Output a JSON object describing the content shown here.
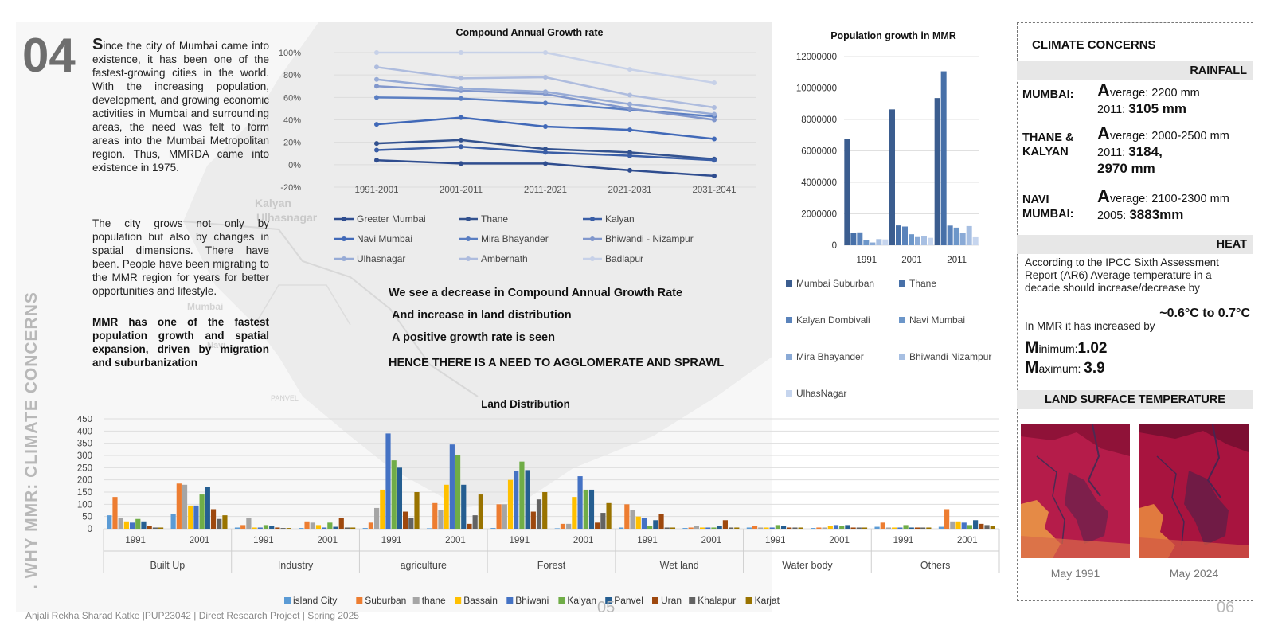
{
  "section_number": "04",
  "vertical_title": ". WHY MMR: CLIMATE CONCERNS",
  "map_labels": [
    "Kalyan",
    "Ulhasnagar",
    "Mumbai",
    "Navi",
    "PANVEL"
  ],
  "intro": {
    "dropcap": "S",
    "paragraph1": "ince the city of Mumbai came into existence, it has been one of the fastest-growing cities in the world. With the increasing population, development, and growing economic activities in Mumbai and surrounding areas, the need was felt to form areas into the Mumbai Metropolitan region. Thus, MMRDA came into existence in 1975.",
    "paragraph2": "The city grows not only by population but also by changes in spatial dimensions. There have been. People have been migrating to the MMR region for years for better opportunities and lifestyle.",
    "highlight": "MMR has one of the fastest population growth and spatial expansion, driven by migration and suburbanization"
  },
  "statements": [
    "We see a decrease in Compound Annual Growth Rate",
    "And increase in land distribution",
    "A positive growth rate is seen",
    "HENCE THERE IS A NEED TO AGGLOMERATE AND SPRAWL"
  ],
  "footer": {
    "credit": "Anjali Rekha Sharad Katke |PUP23042 | Direct Research Project | Spring 2025",
    "page_left": "05",
    "page_right": "06"
  },
  "chart_data": [
    {
      "id": "cagr",
      "type": "line",
      "title": "Compound Annual Growth rate",
      "categories": [
        "1991-2001",
        "2001-2011",
        "2011-2021",
        "2021-2031",
        "2031-2041"
      ],
      "yticks": [
        "100%",
        "80%",
        "60%",
        "40%",
        "20%",
        "0%",
        "-20%"
      ],
      "ylim": [
        -20,
        100
      ],
      "legend_position": "bottom",
      "series": [
        {
          "name": "Greater Mumbai",
          "color": "#2f4d8f",
          "values": [
            4,
            1,
            1,
            -5,
            -10
          ]
        },
        {
          "name": "Thane",
          "color": "#33528f",
          "values": [
            19,
            22,
            14,
            11,
            5
          ]
        },
        {
          "name": "Kalyan",
          "color": "#3a5ea6",
          "values": [
            13,
            16,
            11,
            8,
            4
          ]
        },
        {
          "name": "Navi Mumbai",
          "color": "#4169b8",
          "values": [
            36,
            42,
            34,
            31,
            23
          ]
        },
        {
          "name": "Mira Bhayander",
          "color": "#5a7ec2",
          "values": [
            60,
            59,
            55,
            49,
            43
          ]
        },
        {
          "name": "Bhiwandi - Nizampur",
          "color": "#8197cc",
          "values": [
            70,
            66,
            63,
            50,
            40
          ]
        },
        {
          "name": "Ulhasnagar",
          "color": "#97abd6",
          "values": [
            76,
            68,
            65,
            54,
            45
          ]
        },
        {
          "name": "Ambernath",
          "color": "#aebcde",
          "values": [
            87,
            77,
            78,
            62,
            51
          ]
        },
        {
          "name": "Badlapur",
          "color": "#c7d1e8",
          "values": [
            100,
            100,
            100,
            85,
            73
          ]
        }
      ]
    },
    {
      "id": "population",
      "type": "bar",
      "title": "Population  growth in MMR",
      "categories": [
        "1991",
        "2001",
        "2011"
      ],
      "yticks": [
        "12000000",
        "10000000",
        "8000000",
        "6000000",
        "4000000",
        "2000000",
        "0"
      ],
      "ylim": [
        0,
        12000000
      ],
      "legend_position": "bottom",
      "series": [
        {
          "name": "Mumbai Suburban",
          "color": "#3b5d8f",
          "values": [
            6750000,
            8640000,
            9360000
          ]
        },
        {
          "name": "Thane",
          "color": "#4770a8",
          "values": [
            800000,
            1260000,
            11060000
          ]
        },
        {
          "name": "Kalyan Dombivali",
          "color": "#5a83bb",
          "values": [
            820000,
            1190000,
            1250000
          ]
        },
        {
          "name": "Navi Mumbai",
          "color": "#6c96c9",
          "values": [
            310000,
            700000,
            1120000
          ]
        },
        {
          "name": "Mira Bhayander",
          "color": "#8aaad6",
          "values": [
            175000,
            520000,
            810000
          ]
        },
        {
          "name": "Bhiwandi Nizampur",
          "color": "#a7bfe2",
          "values": [
            390000,
            600000,
            1220000
          ]
        },
        {
          "name": "UlhasNagar",
          "color": "#c6d5ee",
          "values": [
            370000,
            470000,
            510000
          ]
        }
      ]
    },
    {
      "id": "land",
      "type": "bar",
      "title": "Land Distribution",
      "groups": [
        "Built Up",
        "Industry",
        "agriculture",
        "Forest",
        "Wet land",
        "Water body",
        "Others"
      ],
      "years": [
        "1991",
        "2001"
      ],
      "yticks": [
        "450",
        "400",
        "350",
        "300",
        "250",
        "200",
        "150",
        "100",
        "50",
        "0"
      ],
      "ylim": [
        0,
        450
      ],
      "legend_position": "bottom",
      "series": [
        {
          "name": "island City",
          "color": "#5b9bd5",
          "values": [
            [
              55,
              60
            ],
            [
              5,
              3
            ],
            [
              3,
              2
            ],
            [
              3,
              2
            ],
            [
              5,
              3
            ],
            [
              5,
              3
            ],
            [
              8,
              8
            ]
          ]
        },
        {
          "name": "Suburban",
          "color": "#ed7d31",
          "values": [
            [
              130,
              185
            ],
            [
              15,
              30
            ],
            [
              25,
              105
            ],
            [
              100,
              20
            ],
            [
              100,
              5
            ],
            [
              10,
              5
            ],
            [
              25,
              80
            ]
          ]
        },
        {
          "name": "thane",
          "color": "#a5a5a5",
          "values": [
            [
              45,
              180
            ],
            [
              45,
              25
            ],
            [
              85,
              75
            ],
            [
              100,
              20
            ],
            [
              75,
              12
            ],
            [
              5,
              5
            ],
            [
              5,
              30
            ]
          ]
        },
        {
          "name": "Bassain",
          "color": "#ffc000",
          "values": [
            [
              30,
              95
            ],
            [
              5,
              15
            ],
            [
              160,
              180
            ],
            [
              200,
              130
            ],
            [
              50,
              5
            ],
            [
              5,
              10
            ],
            [
              5,
              30
            ]
          ]
        },
        {
          "name": "Bhiwani",
          "color": "#4472c4",
          "values": [
            [
              25,
              95
            ],
            [
              5,
              5
            ],
            [
              390,
              345
            ],
            [
              235,
              215
            ],
            [
              45,
              5
            ],
            [
              5,
              15
            ],
            [
              5,
              25
            ]
          ]
        },
        {
          "name": "Kalyan",
          "color": "#70ad47",
          "values": [
            [
              40,
              140
            ],
            [
              15,
              25
            ],
            [
              280,
              300
            ],
            [
              275,
              160
            ],
            [
              10,
              5
            ],
            [
              15,
              10
            ],
            [
              15,
              15
            ]
          ]
        },
        {
          "name": "Panvel",
          "color": "#255e91",
          "values": [
            [
              30,
              170
            ],
            [
              10,
              8
            ],
            [
              250,
              180
            ],
            [
              240,
              160
            ],
            [
              35,
              10
            ],
            [
              10,
              15
            ],
            [
              5,
              35
            ]
          ]
        },
        {
          "name": "Uran",
          "color": "#9e480e",
          "values": [
            [
              10,
              80
            ],
            [
              5,
              45
            ],
            [
              70,
              20
            ],
            [
              70,
              25
            ],
            [
              60,
              35
            ],
            [
              5,
              5
            ],
            [
              5,
              20
            ]
          ]
        },
        {
          "name": "Khalapur",
          "color": "#636363",
          "values": [
            [
              5,
              40
            ],
            [
              3,
              5
            ],
            [
              45,
              55
            ],
            [
              120,
              65
            ],
            [
              5,
              5
            ],
            [
              5,
              5
            ],
            [
              5,
              15
            ]
          ]
        },
        {
          "name": "Karjat",
          "color": "#997300",
          "values": [
            [
              5,
              55
            ],
            [
              3,
              5
            ],
            [
              150,
              140
            ],
            [
              150,
              105
            ],
            [
              5,
              5
            ],
            [
              5,
              5
            ],
            [
              5,
              10
            ]
          ]
        }
      ]
    }
  ],
  "climate": {
    "title": "CLIMATE CONCERNS",
    "rainfall_header": "RAINFALL",
    "rainfall": [
      {
        "city_line1": "MUMBAI:",
        "city_line2": "",
        "cap": "A",
        "avg": "verage: 2200 mm",
        "year": "2011:",
        "value": "3105 mm"
      },
      {
        "city_line1": "THANE &",
        "city_line2": "KALYAN",
        "cap": "A",
        "avg": "verage: 2000-2500 mm",
        "year": "2011:",
        "value": "3184,",
        "value2": "2970 mm"
      },
      {
        "city_line1": "NAVI",
        "city_line2": "MUMBAI:",
        "cap": "A",
        "avg": "verage: 2100-2300 mm",
        "year": "2005:",
        "value": "3883mm"
      }
    ],
    "heat_header": "HEAT",
    "heat_text": "According to the IPCC Sixth Assessment Report (AR6) Average temperature in a decade should increase/decrease by",
    "heat_range": "~0.6°C to 0.7°C",
    "heat_mmr": "In MMR it has increased by",
    "min_cap": "M",
    "min_label": "inimum:",
    "min_value": "1.02",
    "max_cap": "M",
    "max_label": "aximum: ",
    "max_value": "3.9",
    "lst_header": "LAND SURFACE TEMPERATURE",
    "lst_captions": [
      "May 1991",
      "May 2024"
    ]
  }
}
